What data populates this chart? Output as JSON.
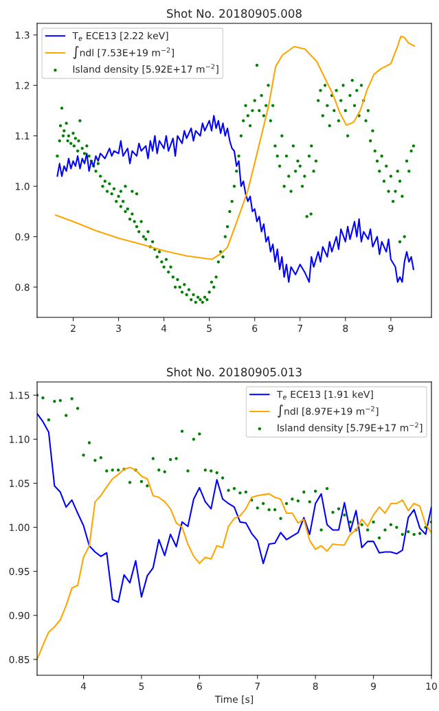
{
  "chart_data": [
    {
      "type": "line",
      "title": "Shot No. 20180905.008",
      "xlim": [
        1.205,
        9.895
      ],
      "ylim": [
        0.74,
        1.323
      ],
      "xticks": [
        2,
        3,
        4,
        5,
        6,
        7,
        8,
        9
      ],
      "yticks": [
        {
          "value": 0.8,
          "label": "0.8"
        },
        {
          "value": 0.9,
          "label": "0.9"
        },
        {
          "value": 1.0,
          "label": "1.0"
        },
        {
          "value": 1.1,
          "label": "1.1"
        },
        {
          "value": 1.2,
          "label": "1.2"
        },
        {
          "value": 1.3,
          "label": "1.3"
        }
      ],
      "grid": false,
      "legend": "top left",
      "series": [
        {
          "name": "T$_{e}$ ECE13 [2.22 keV]",
          "color": "#0000ff",
          "x": [
            1.65,
            1.7,
            1.75,
            1.8,
            1.85,
            1.9,
            1.95,
            2.0,
            2.05,
            2.1,
            2.15,
            2.2,
            2.25,
            2.3,
            2.35,
            2.4,
            2.45,
            2.5,
            2.55,
            2.6,
            2.7,
            2.8,
            2.85,
            2.9,
            3.0,
            3.05,
            3.1,
            3.2,
            3.25,
            3.3,
            3.4,
            3.45,
            3.5,
            3.6,
            3.65,
            3.7,
            3.75,
            3.8,
            3.85,
            3.9,
            4.0,
            4.05,
            4.1,
            4.2,
            4.25,
            4.3,
            4.4,
            4.45,
            4.5,
            4.6,
            4.65,
            4.7,
            4.8,
            4.85,
            4.9,
            5.0,
            5.05,
            5.1,
            5.15,
            5.2,
            5.25,
            5.3,
            5.35,
            5.4,
            5.45,
            5.5,
            5.55,
            5.6,
            5.65,
            5.7,
            5.75,
            5.8,
            5.85,
            5.9,
            5.95,
            6.0,
            6.05,
            6.1,
            6.15,
            6.2,
            6.25,
            6.3,
            6.35,
            6.4,
            6.45,
            6.5,
            6.55,
            6.6,
            6.65,
            6.7,
            6.75,
            6.8,
            6.9,
            7.0,
            7.1,
            7.2,
            7.25,
            7.3,
            7.4,
            7.45,
            7.5,
            7.6,
            7.65,
            7.7,
            7.8,
            7.85,
            7.9,
            8.0,
            8.05,
            8.1,
            8.2,
            8.25,
            8.3,
            8.35,
            8.4,
            8.5,
            8.55,
            8.6,
            8.7,
            8.75,
            8.8,
            8.9,
            8.95,
            9.0,
            9.1,
            9.15,
            9.2,
            9.25,
            9.3,
            9.35,
            9.4,
            9.45,
            9.5
          ],
          "values": [
            1.02,
            1.045,
            1.02,
            1.04,
            1.03,
            1.055,
            1.035,
            1.05,
            1.04,
            1.06,
            1.035,
            1.055,
            1.045,
            1.065,
            1.03,
            1.05,
            1.04,
            1.06,
            1.05,
            1.065,
            1.055,
            1.075,
            1.06,
            1.07,
            1.065,
            1.09,
            1.06,
            1.075,
            1.045,
            1.07,
            1.06,
            1.085,
            1.07,
            1.08,
            1.055,
            1.09,
            1.07,
            1.1,
            1.065,
            1.09,
            1.075,
            1.1,
            1.07,
            1.095,
            1.06,
            1.1,
            1.085,
            1.11,
            1.095,
            1.115,
            1.09,
            1.11,
            1.1,
            1.125,
            1.11,
            1.13,
            1.11,
            1.14,
            1.115,
            1.13,
            1.105,
            1.125,
            1.1,
            1.115,
            1.09,
            1.075,
            1.07,
            1.04,
            1.05,
            1.0,
            1.01,
            0.985,
            0.97,
            0.98,
            0.95,
            0.955,
            0.93,
            0.94,
            0.91,
            0.925,
            0.89,
            0.9,
            0.87,
            0.885,
            0.85,
            0.875,
            0.835,
            0.86,
            0.82,
            0.845,
            0.81,
            0.84,
            0.825,
            0.845,
            0.83,
            0.81,
            0.86,
            0.84,
            0.87,
            0.85,
            0.88,
            0.86,
            0.89,
            0.87,
            0.9,
            0.875,
            0.915,
            0.89,
            0.92,
            0.895,
            0.93,
            0.9,
            0.935,
            0.89,
            0.91,
            0.895,
            0.915,
            0.88,
            0.9,
            0.865,
            0.89,
            0.87,
            0.895,
            0.855,
            0.84,
            0.81,
            0.82,
            0.81,
            0.85,
            0.87,
            0.85,
            0.86,
            0.835
          ]
        },
        {
          "name": "∫ndl [7.53E+19 m$^{−2}$]",
          "color": "#ffa500",
          "x": [
            1.61,
            2.0,
            2.5,
            3.0,
            3.5,
            4.0,
            4.5,
            5.05,
            5.25,
            5.4,
            5.66,
            5.85,
            6.0,
            6.2,
            6.31,
            6.46,
            6.61,
            6.87,
            7.11,
            7.37,
            7.57,
            7.72,
            7.87,
            8.02,
            8.18,
            8.33,
            8.48,
            8.63,
            8.78,
            9.0,
            9.15,
            9.22,
            9.3,
            9.39,
            9.52
          ],
          "values": [
            0.943,
            0.93,
            0.912,
            0.897,
            0.885,
            0.872,
            0.862,
            0.855,
            0.866,
            0.879,
            0.943,
            0.992,
            1.046,
            1.12,
            1.161,
            1.237,
            1.26,
            1.277,
            1.272,
            1.247,
            1.21,
            1.183,
            1.147,
            1.121,
            1.127,
            1.151,
            1.192,
            1.222,
            1.233,
            1.243,
            1.278,
            1.297,
            1.295,
            1.284,
            1.278
          ]
        },
        {
          "name": "Island density [5.92E+17 m$^{−2}$]",
          "type": "scatter",
          "color": "#008000",
          "x": [
            1.65,
            1.7,
            1.72,
            1.75,
            1.78,
            1.8,
            1.85,
            1.88,
            1.9,
            1.95,
            2.0,
            2.02,
            2.05,
            2.1,
            2.12,
            2.15,
            2.2,
            2.25,
            2.3,
            2.35,
            2.4,
            2.45,
            2.5,
            2.55,
            2.6,
            2.65,
            2.7,
            2.75,
            2.8,
            2.85,
            2.9,
            2.95,
            3.0,
            3.05,
            3.05,
            3.1,
            3.15,
            3.15,
            3.2,
            3.25,
            3.3,
            3.3,
            3.35,
            3.4,
            3.4,
            3.45,
            3.5,
            3.55,
            3.6,
            3.65,
            3.7,
            3.75,
            3.8,
            3.85,
            3.9,
            3.95,
            4.0,
            4.05,
            4.1,
            4.15,
            4.2,
            4.25,
            4.3,
            4.35,
            4.4,
            4.45,
            4.5,
            4.55,
            4.6,
            4.65,
            4.7,
            4.75,
            4.8,
            4.85,
            4.9,
            4.95,
            5.0,
            5.05,
            5.1,
            5.15,
            5.2,
            5.25,
            5.3,
            5.35,
            5.4,
            5.45,
            5.5,
            5.55,
            5.6,
            5.65,
            5.7,
            5.75,
            5.8,
            5.85,
            5.9,
            5.95,
            6.0,
            6.05,
            6.1,
            6.15,
            6.2,
            6.25,
            6.3,
            6.35,
            6.4,
            6.45,
            6.5,
            6.55,
            6.6,
            6.65,
            6.7,
            6.75,
            6.8,
            6.85,
            6.9,
            6.95,
            7.0,
            7.05,
            7.1,
            7.15,
            7.2,
            7.24,
            7.25,
            7.3,
            7.35,
            7.4,
            7.45,
            7.5,
            7.55,
            7.6,
            7.65,
            7.7,
            7.75,
            7.8,
            7.85,
            7.9,
            7.95,
            8.0,
            8.05,
            8.1,
            8.15,
            8.2,
            8.25,
            8.3,
            8.35,
            8.4,
            8.45,
            8.5,
            8.55,
            8.6,
            8.65,
            8.7,
            8.75,
            8.8,
            8.85,
            8.9,
            8.95,
            9.0,
            9.05,
            9.1,
            9.15,
            9.2,
            9.2,
            9.25,
            9.3,
            9.35,
            9.4,
            9.45,
            9.5
          ],
          "values": [
            1.06,
            1.09,
            1.12,
            1.155,
            1.1,
            1.11,
            1.125,
            1.09,
            1.1,
            1.085,
            1.105,
            1.08,
            1.095,
            1.07,
            1.09,
            1.13,
            1.075,
            1.065,
            1.08,
            1.06,
            1.05,
            1.04,
            1.03,
            1.045,
            1.02,
            1.0,
            1.01,
            0.99,
            1.005,
            0.985,
            0.995,
            0.97,
            0.98,
            0.96,
            0.99,
            0.97,
            0.95,
            1.0,
            0.955,
            0.935,
            0.945,
            0.99,
            0.93,
            0.92,
            0.985,
            0.91,
            0.93,
            0.9,
            0.895,
            0.91,
            0.88,
            0.89,
            0.875,
            0.86,
            0.87,
            0.85,
            0.84,
            0.855,
            0.83,
            0.84,
            0.82,
            0.8,
            0.815,
            0.8,
            0.79,
            0.805,
            0.785,
            0.795,
            0.775,
            0.785,
            0.77,
            0.78,
            0.775,
            0.77,
            0.78,
            0.775,
            0.79,
            0.81,
            0.8,
            0.82,
            0.85,
            0.87,
            0.86,
            0.9,
            0.92,
            0.95,
            0.97,
            1.0,
            1.03,
            1.06,
            1.1,
            1.13,
            1.16,
            1.14,
            1.12,
            1.15,
            1.17,
            1.24,
            1.15,
            1.18,
            1.14,
            1.16,
            1.2,
            1.13,
            1.16,
            1.08,
            1.06,
            1.04,
            1.1,
            1.0,
            1.06,
            1.02,
            0.99,
            1.08,
            1.03,
            1.05,
            1.04,
            1.0,
            1.02,
            0.94,
            1.06,
            0.945,
            1.08,
            1.03,
            1.05,
            1.17,
            1.19,
            1.14,
            1.2,
            1.16,
            1.12,
            1.18,
            1.15,
            1.19,
            1.13,
            1.17,
            1.2,
            1.15,
            1.1,
            1.18,
            1.21,
            1.16,
            1.19,
            1.14,
            1.2,
            1.17,
            1.13,
            1.15,
            1.09,
            1.11,
            1.07,
            1.05,
            1.03,
            1.06,
            1.01,
            1.04,
            0.99,
            1.02,
            0.97,
            0.99,
            1.03,
            1.01,
            0.89,
            0.98,
            0.9,
            1.05,
            1.03,
            1.07,
            1.08
          ]
        }
      ]
    },
    {
      "type": "line",
      "title": "Shot No. 20180905.013",
      "xlabel": "Time [s]",
      "xlim": [
        3.2,
        10
      ],
      "ylim": [
        0.832,
        1.165
      ],
      "xticks": [
        4,
        5,
        6,
        7,
        8,
        9,
        10
      ],
      "yticks": [
        {
          "value": 0.85,
          "label": "0.85"
        },
        {
          "value": 0.9,
          "label": "0.90"
        },
        {
          "value": 0.95,
          "label": "0.95"
        },
        {
          "value": 1.0,
          "label": "1.00"
        },
        {
          "value": 1.05,
          "label": "1.05"
        },
        {
          "value": 1.1,
          "label": "1.10"
        },
        {
          "value": 1.15,
          "label": "1.15"
        }
      ],
      "grid": false,
      "legend": "top right",
      "x": [
        3.2,
        3.3,
        3.4,
        3.5,
        3.6,
        3.7,
        3.8,
        3.9,
        4.0,
        4.1,
        4.2,
        4.3,
        4.4,
        4.5,
        4.6,
        4.7,
        4.8,
        4.9,
        5.0,
        5.1,
        5.2,
        5.3,
        5.4,
        5.5,
        5.6,
        5.7,
        5.8,
        5.9,
        6.0,
        6.1,
        6.2,
        6.3,
        6.4,
        6.5,
        6.6,
        6.7,
        6.8,
        6.9,
        7.0,
        7.1,
        7.2,
        7.3,
        7.4,
        7.5,
        7.6,
        7.7,
        7.8,
        7.9,
        8.0,
        8.1,
        8.2,
        8.3,
        8.4,
        8.5,
        8.6,
        8.7,
        8.8,
        8.9,
        9.0,
        9.1,
        9.2,
        9.3,
        9.4,
        9.5,
        9.6,
        9.7,
        9.8,
        9.9,
        10.0
      ],
      "series": [
        {
          "name": "T$_{e}$ ECE13 [1.91 keV]",
          "color": "#0000ff",
          "values": [
            1.129,
            1.12,
            1.108,
            1.047,
            1.04,
            1.023,
            1.031,
            1.016,
            1.002,
            0.979,
            0.972,
            0.967,
            0.971,
            0.918,
            0.915,
            0.946,
            0.937,
            0.962,
            0.921,
            0.945,
            0.954,
            0.986,
            0.968,
            0.992,
            0.978,
            1.006,
            1.001,
            1.032,
            1.045,
            1.029,
            1.021,
            1.054,
            1.032,
            1.027,
            1.023,
            1.006,
            1.005,
            0.993,
            0.985,
            0.959,
            0.981,
            0.982,
            0.994,
            0.986,
            0.99,
            0.994,
            1.011,
            0.992,
            1.027,
            1.038,
            1.003,
            0.997,
            0.997,
            1.028,
            0.995,
            1.019,
            0.977,
            0.984,
            0.984,
            0.971,
            0.972,
            0.972,
            0.97,
            0.974,
            1.011,
            1.02,
            0.999,
            0.992,
            1.023
          ]
        },
        {
          "name": "∫ndl [8.97E+19 m$^{−2}$]",
          "color": "#ffa500",
          "values": [
            0.85,
            0.866,
            0.881,
            0.887,
            0.895,
            0.911,
            0.931,
            0.934,
            0.966,
            0.979,
            1.029,
            1.036,
            1.046,
            1.055,
            1.06,
            1.066,
            1.068,
            1.065,
            1.058,
            1.055,
            1.036,
            1.034,
            1.029,
            1.021,
            1.005,
            1.0,
            0.981,
            0.967,
            0.959,
            0.966,
            0.964,
            0.979,
            0.977,
            1.001,
            1.01,
            1.013,
            1.021,
            1.034,
            1.036,
            1.037,
            1.038,
            1.034,
            1.032,
            1.016,
            1.016,
            1.005,
            1.009,
            0.985,
            0.975,
            0.979,
            0.973,
            0.981,
            0.98,
            0.98,
            0.992,
            0.997,
            1.009,
            1.001,
            1.014,
            1.023,
            1.016,
            1.027,
            1.027,
            1.031,
            1.019,
            1.027,
            1.024,
            1.003,
            0.994
          ]
        },
        {
          "name": "Island density [5.79E+17 m$^{−2}$]",
          "type": "scatter",
          "color": "#008000",
          "values": [
            1.15,
            1.147,
            1.122,
            1.143,
            1.144,
            1.127,
            1.146,
            1.135,
            1.082,
            1.096,
            1.076,
            1.079,
            1.064,
            1.065,
            1.065,
            1.066,
            1.051,
            1.065,
            1.052,
            1.047,
            1.078,
            1.065,
            1.063,
            1.077,
            1.078,
            1.109,
            1.064,
            1.1,
            1.106,
            1.065,
            1.064,
            1.062,
            1.056,
            1.042,
            1.044,
            1.039,
            1.04,
            1.031,
            1.022,
            1.027,
            1.02,
            1.02,
            1.01,
            1.027,
            1.032,
            1.03,
            1.04,
            1.029,
            1.041,
            0.997,
            1.044,
            1.017,
            1.021,
            1.014,
            1.006,
            0.997,
            1.003,
            0.997,
            1.006,
            0.988,
            0.997,
            1.003,
            1.0,
            0.992,
            0.995,
            0.992,
            0.993,
            1.0,
            1.006
          ]
        }
      ]
    }
  ]
}
